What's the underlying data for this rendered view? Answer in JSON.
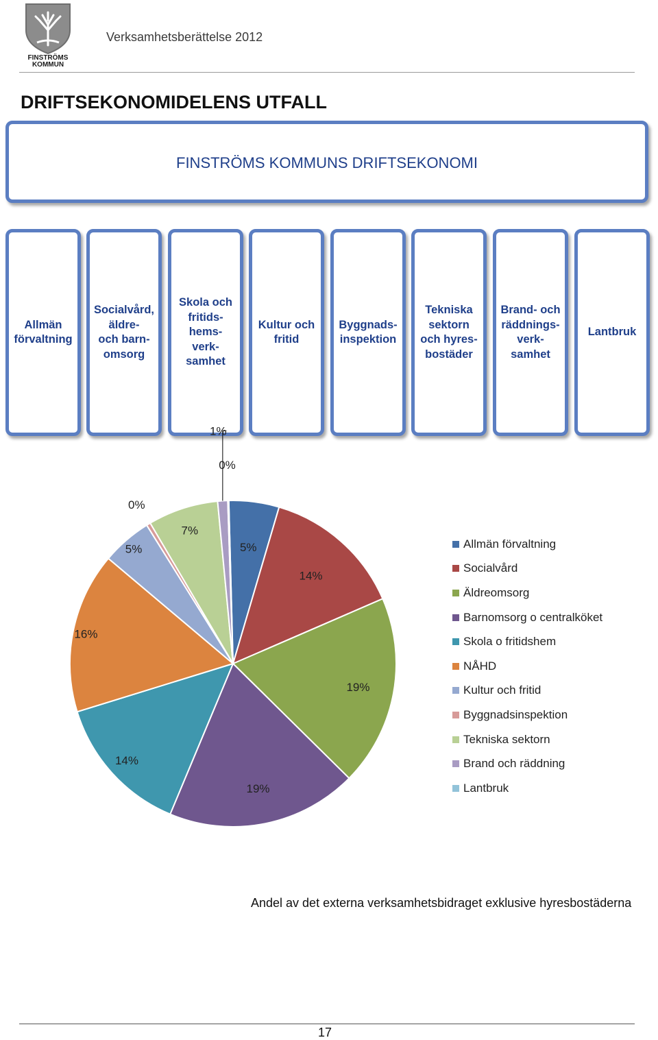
{
  "header": {
    "logo_text_line1": "FINSTRÖMS",
    "logo_text_line2": "KOMMUN",
    "title": "Verksamhetsberättelse 2012"
  },
  "section_title": "DRIFTSEKONOMIDELENS UTFALL",
  "org_chart": {
    "top": "FINSTRÖMS KOMMUNS DRIFTSEKONOMI",
    "boxes": [
      "Allmän\nförvaltning",
      "Socialvård,\näldre-\noch barn-\nomsorg",
      "Skola och\nfritids-\nhems-\nverk-\nsamhet",
      "Kultur och\nfritid",
      "Byggnads-\ninspektion",
      "Tekniska\nsektorn\noch hyres-\nbostäder",
      "Brand- och\nräddnings-\nverk-\nsamhet",
      "Lantbruk"
    ]
  },
  "chart_data": {
    "type": "pie",
    "title": "",
    "series": [
      {
        "name": "",
        "labels": [
          "Allmän förvaltning",
          "Socialvård",
          "Äldreomsorg",
          "Barnomsorg o centralköket",
          "Skola o fritidshem",
          "NÅHD",
          "Kultur och fritid",
          "Byggnadsinspektion",
          "Tekniska sektorn",
          "Brand och räddning",
          "Lantbruk"
        ],
        "values": [
          5.0,
          14.0,
          19.0,
          19.0,
          14.0,
          16.0,
          5.0,
          0.4,
          7.0,
          1.0,
          0.1
        ],
        "data_labels": [
          "5%",
          "14%",
          "19%",
          "19%",
          "14%",
          "16%",
          "5%",
          "0%",
          "7%",
          "1%",
          "0%"
        ],
        "colors": [
          "#4470a8",
          "#a94846",
          "#8ba64e",
          "#6f578e",
          "#3f97ae",
          "#dc843f",
          "#95a9d0",
          "#d79b99",
          "#b9d095",
          "#a99cc3",
          "#92c3d9"
        ]
      }
    ],
    "legend_position": "right"
  },
  "caption": "Andel av det externa verksamhetsbidraget exklusive hyresbostäderna",
  "page_number": "17"
}
